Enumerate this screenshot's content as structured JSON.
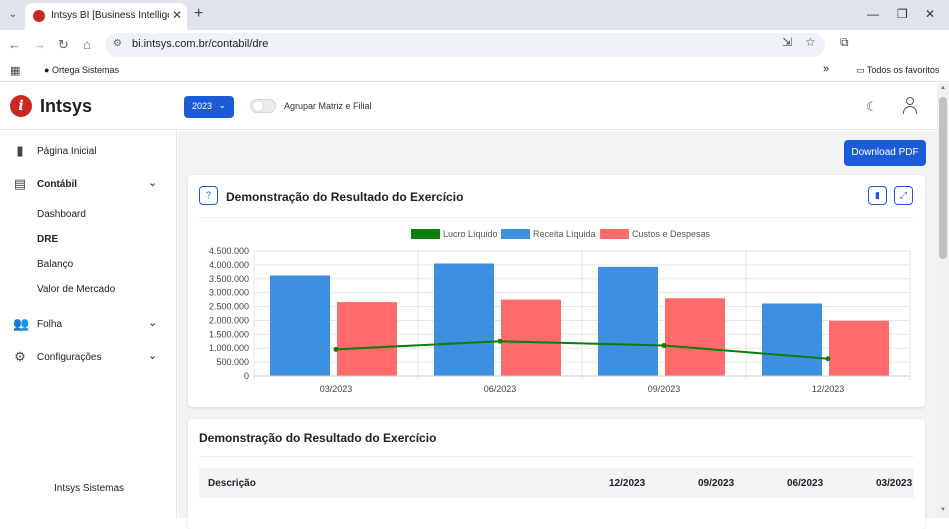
{
  "browser": {
    "tab_title": "Intsys BI [Business Intelligence]",
    "url": "bi.intsys.com.br/contabil/dre",
    "bookmark_ortega": "Ortega Sistemas",
    "bookmark_more": "»",
    "bookmark_favorites": "Todos os favoritos"
  },
  "header": {
    "logo_text": "Intsys",
    "logo_letter": "i",
    "year": "2023",
    "toggle_label": "Agrupar Matriz e Filial",
    "toggle_on": false
  },
  "sidebar": {
    "items": [
      {
        "label": "Página Inicial",
        "icon": "building-icon"
      },
      {
        "label": "Contábil",
        "icon": "document-icon"
      },
      {
        "label": "Folha",
        "icon": "users-icon"
      },
      {
        "label": "Configurações",
        "icon": "gear-icon"
      }
    ],
    "sub_items": [
      "Dashboard",
      "DRE",
      "Balanço",
      "Valor de Mercado"
    ],
    "footer": "Intsys Sistemas"
  },
  "content": {
    "download_label": "Download PDF",
    "chart_card_title": "Demonstração do Resultado do Exercício",
    "table_card_title": "Demonstração do Resultado do Exercício",
    "table_headers": [
      "Descrição",
      "12/2023",
      "09/2023",
      "06/2023",
      "03/2023"
    ]
  },
  "colors": {
    "primary": "#1c5bd6",
    "lucro": "#0a7d0a",
    "receita": "#3d8fe0",
    "custos": "#ff6b6b"
  },
  "chart_data": {
    "type": "bar",
    "categories": [
      "03/2023",
      "06/2023",
      "09/2023",
      "12/2023"
    ],
    "series": [
      {
        "name": "Lucro Líquido",
        "type": "line",
        "values": [
          960000,
          1250000,
          1100000,
          620000
        ]
      },
      {
        "name": "Receita Líquida",
        "type": "bar",
        "values": [
          3620000,
          4050000,
          3930000,
          2610000
        ]
      },
      {
        "name": "Custos e Despesas",
        "type": "bar",
        "values": [
          2660000,
          2750000,
          2800000,
          1990000
        ]
      }
    ],
    "yticks": [
      "4.500.000",
      "4.000.000",
      "3.500.000",
      "3.000.000",
      "2.500.000",
      "2.000.000",
      "1.500.000",
      "1.000.000",
      "500.000",
      "0"
    ],
    "ylim": [
      0,
      4500000
    ],
    "legend_position": "top",
    "grid": true
  }
}
